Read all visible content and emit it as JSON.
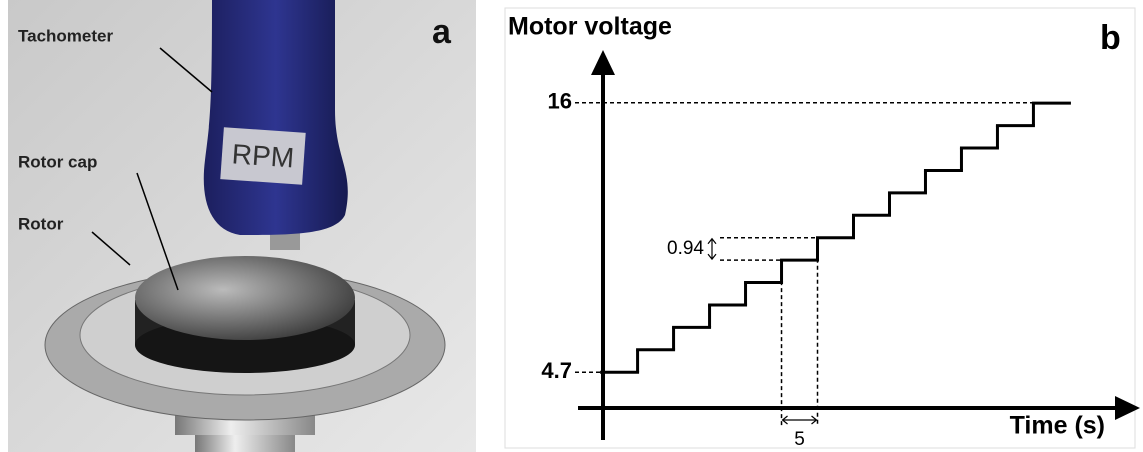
{
  "panel_a": {
    "label": "a",
    "annotations": [
      "Tachometer",
      "Rotor cap",
      "Rotor"
    ],
    "device_text": "RPM"
  },
  "chart_data": {
    "type": "step",
    "panel_label": "b",
    "y_label": "Motor voltage",
    "x_label": "Time (s)",
    "x": [
      0,
      5,
      10,
      15,
      20,
      25,
      30,
      35,
      40,
      45,
      50,
      55,
      60
    ],
    "values": [
      4.7,
      5.64,
      6.58,
      7.52,
      8.46,
      9.4,
      10.34,
      11.28,
      12.22,
      13.16,
      14.1,
      15.04,
      15.98
    ],
    "step_duration": 5,
    "step_height": 0.94,
    "xlim": [
      -3,
      73
    ],
    "ylim": [
      3.2,
      18
    ],
    "yticks": [
      4.7,
      16
    ],
    "color": "#000000"
  }
}
